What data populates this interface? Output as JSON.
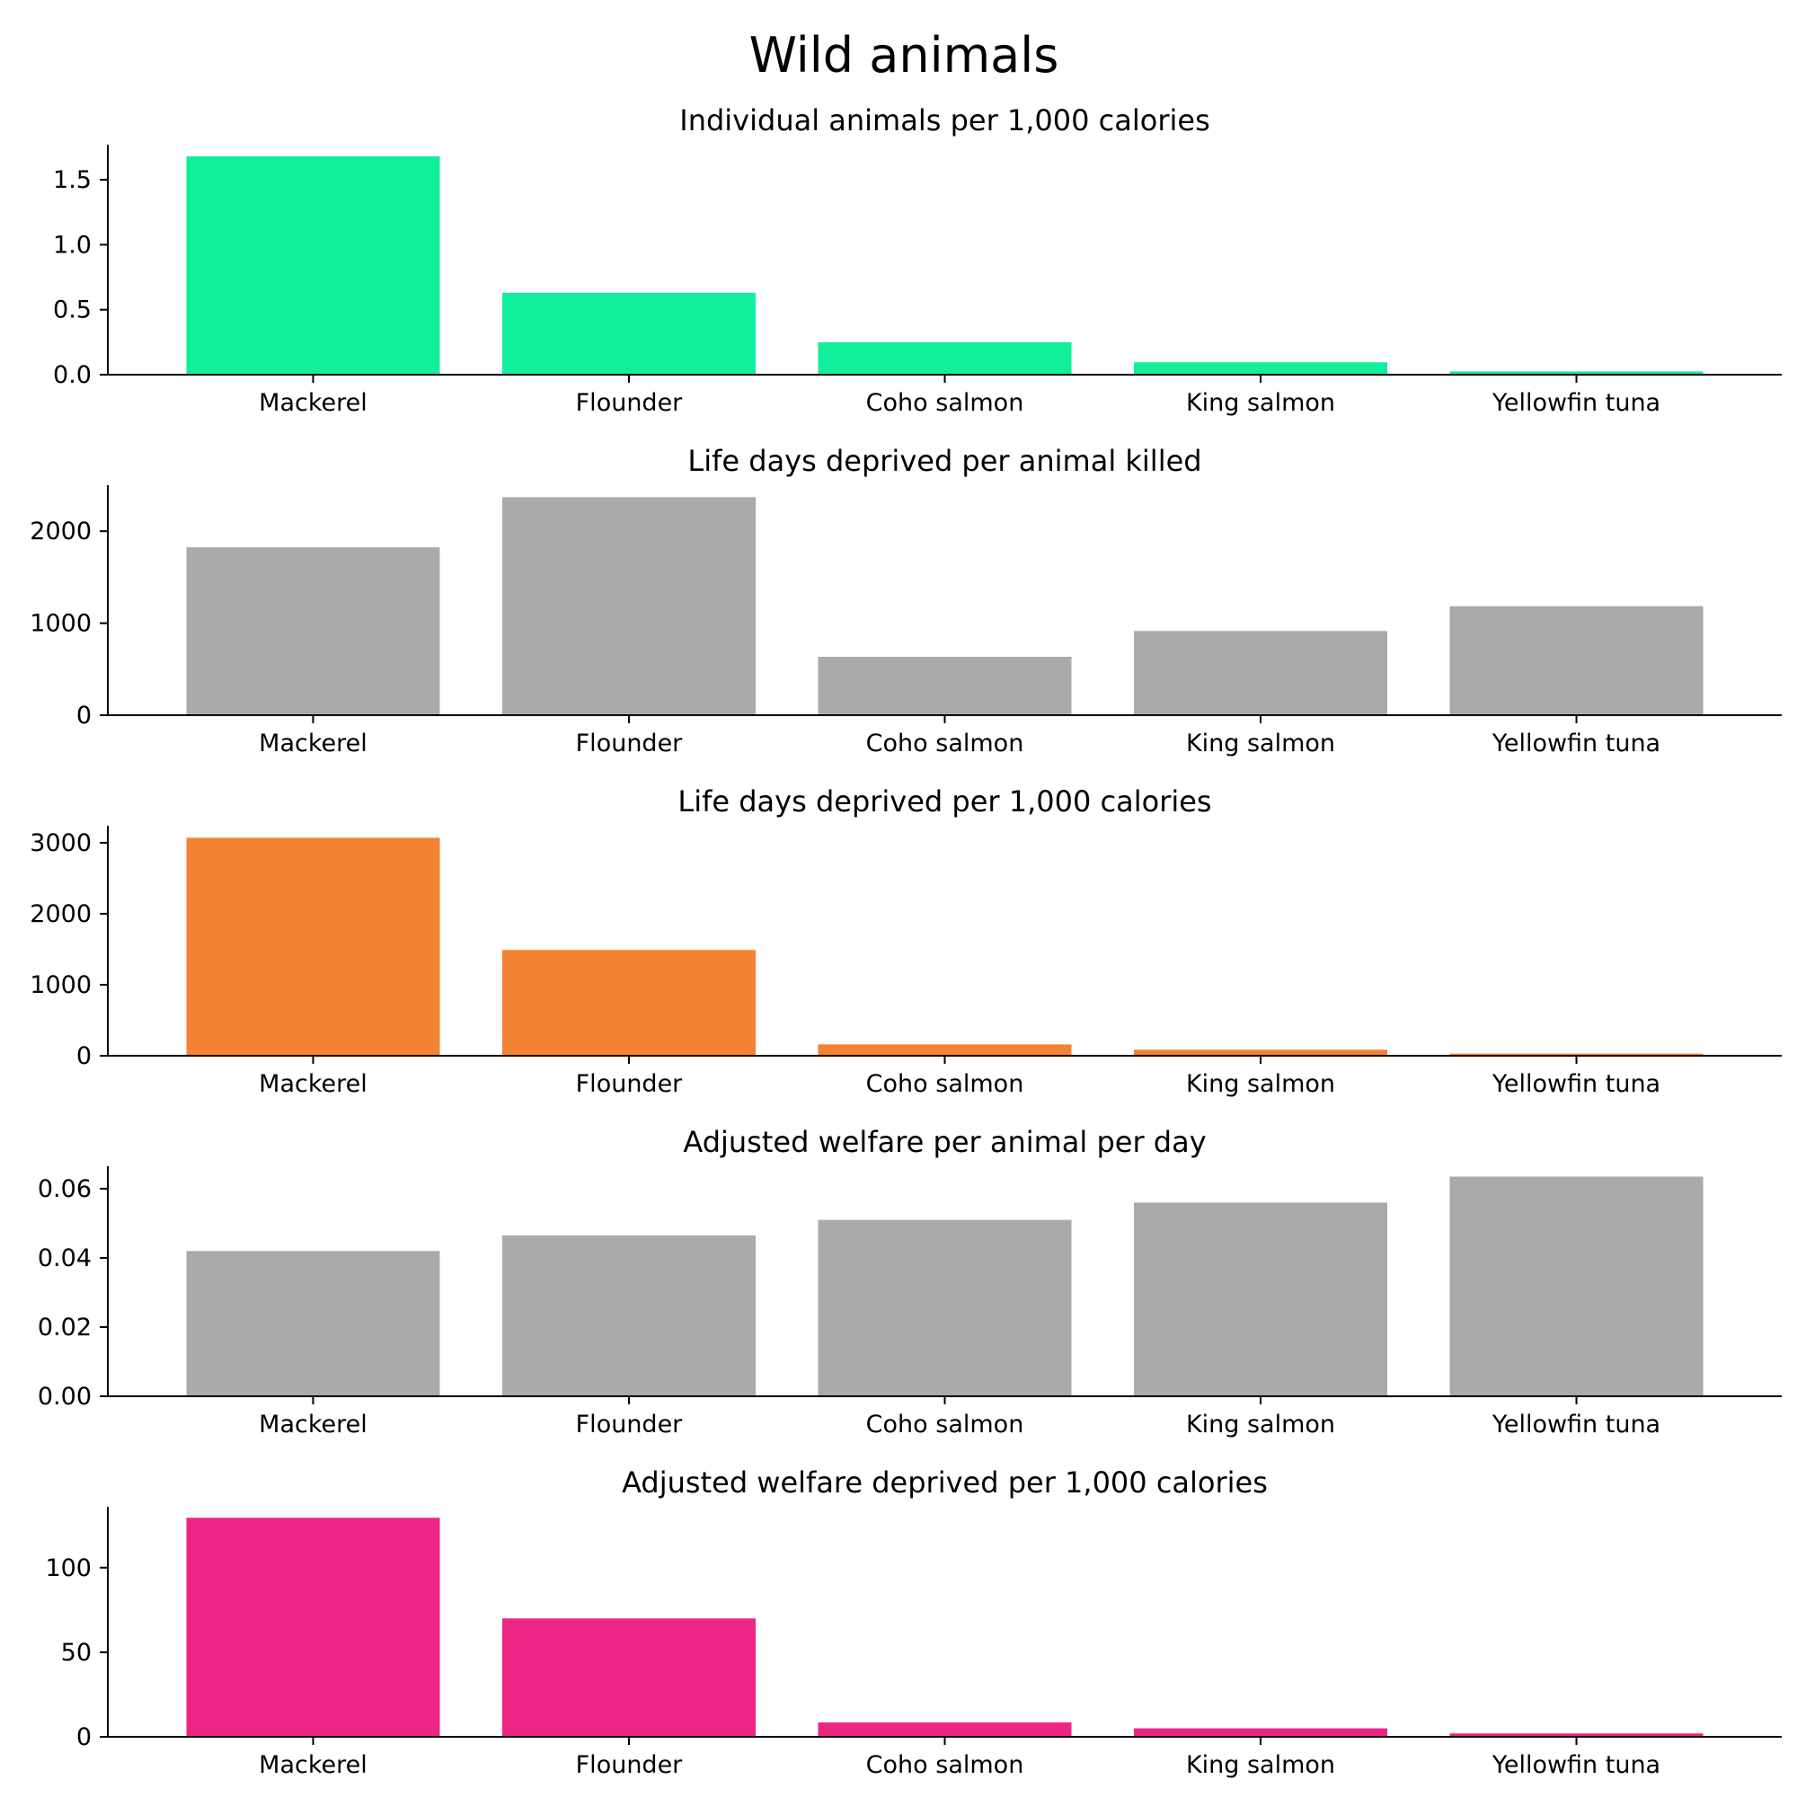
{
  "figure": {
    "suptitle": "Wild animals"
  },
  "chart_data": [
    {
      "type": "bar",
      "title": "Individual animals per 1,000 calories",
      "categories": [
        "Mackerel",
        "Flounder",
        "Coho salmon",
        "King salmon",
        "Yellowfin tuna"
      ],
      "values": [
        1.68,
        0.63,
        0.25,
        0.095,
        0.025
      ],
      "ylim": [
        0,
        1.77
      ],
      "yticks": [
        0.0,
        0.5,
        1.0,
        1.5
      ],
      "ytick_labels": [
        "0.0",
        "0.5",
        "1.0",
        "1.5"
      ],
      "color": "#11ee9c",
      "grid": false
    },
    {
      "type": "bar",
      "title": "Life days deprived per animal killed",
      "categories": [
        "Mackerel",
        "Flounder",
        "Coho salmon",
        "King salmon",
        "Yellowfin tuna"
      ],
      "values": [
        1825,
        2370,
        635,
        915,
        1185
      ],
      "ylim": [
        0,
        2500
      ],
      "yticks": [
        0,
        1000,
        2000
      ],
      "ytick_labels": [
        "0",
        "1000",
        "2000"
      ],
      "color": "#aaaaaa",
      "grid": false
    },
    {
      "type": "bar",
      "title": "Life days deprived per 1,000 calories",
      "categories": [
        "Mackerel",
        "Flounder",
        "Coho salmon",
        "King salmon",
        "Yellowfin tuna"
      ],
      "values": [
        3070,
        1490,
        160,
        85,
        30
      ],
      "ylim": [
        0,
        3240
      ],
      "yticks": [
        0,
        1000,
        2000,
        3000
      ],
      "ytick_labels": [
        "0",
        "1000",
        "2000",
        "3000"
      ],
      "color": "#f48233",
      "grid": false
    },
    {
      "type": "bar",
      "title": "Adjusted welfare per animal per day",
      "categories": [
        "Mackerel",
        "Flounder",
        "Coho salmon",
        "King salmon",
        "Yellowfin tuna"
      ],
      "values": [
        0.042,
        0.0465,
        0.051,
        0.056,
        0.0635
      ],
      "ylim": [
        0,
        0.0665
      ],
      "yticks": [
        0.0,
        0.02,
        0.04,
        0.06
      ],
      "ytick_labels": [
        "0.00",
        "0.02",
        "0.04",
        "0.06"
      ],
      "color": "#aaaaaa",
      "grid": false
    },
    {
      "type": "bar",
      "title": "Adjusted welfare deprived per 1,000 calories",
      "categories": [
        "Mackerel",
        "Flounder",
        "Coho salmon",
        "King salmon",
        "Yellowfin tuna"
      ],
      "values": [
        129.5,
        70,
        8.5,
        5,
        2
      ],
      "ylim": [
        0,
        136
      ],
      "yticks": [
        0,
        50,
        100
      ],
      "ytick_labels": [
        "0",
        "50",
        "100"
      ],
      "color": "#ed2585",
      "grid": false
    }
  ]
}
